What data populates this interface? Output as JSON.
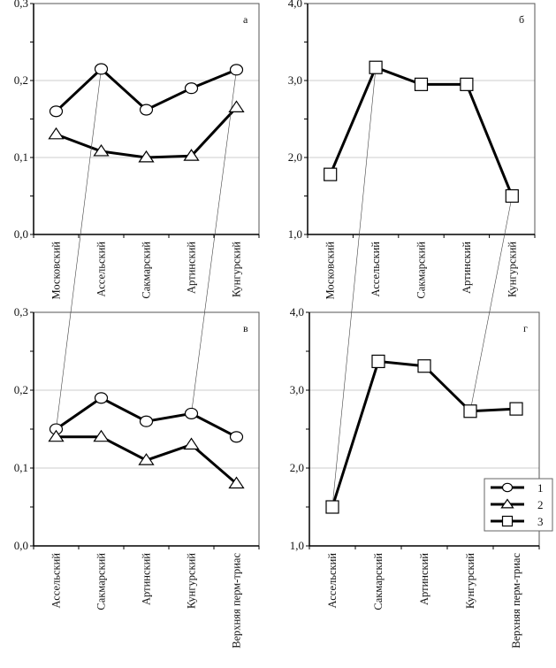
{
  "chart_data": [
    {
      "type": "line",
      "panel_label": "а",
      "categories": [
        "Московский",
        "Ассельский",
        "Сакмарский",
        "Артинский",
        "Кунгурский"
      ],
      "ylim": [
        0.0,
        0.3
      ],
      "yticks": [
        "0,0",
        "0,1",
        "0,2",
        "0,3"
      ],
      "ytick_values": [
        0.0,
        0.1,
        0.2,
        0.3
      ],
      "grid": true,
      "series": [
        {
          "name": "1",
          "marker": "circle",
          "values": [
            0.16,
            0.215,
            0.162,
            0.19,
            0.214
          ]
        },
        {
          "name": "2",
          "marker": "triangle",
          "values": [
            0.13,
            0.108,
            0.1,
            0.102,
            0.165
          ]
        }
      ]
    },
    {
      "type": "line",
      "panel_label": "б",
      "categories": [
        "Московский",
        "Ассельский",
        "Сакмарский",
        "Артинский",
        "Кунгурский"
      ],
      "ylim": [
        1.0,
        4.0
      ],
      "yticks": [
        "1,0",
        "2,0",
        "3,0",
        "4,0"
      ],
      "ytick_values": [
        1.0,
        2.0,
        3.0,
        4.0
      ],
      "grid": true,
      "series": [
        {
          "name": "3",
          "marker": "square",
          "values": [
            1.78,
            3.17,
            2.95,
            2.95,
            1.5
          ]
        }
      ]
    },
    {
      "type": "line",
      "panel_label": "в",
      "categories": [
        "Ассельский",
        "Сакмарский",
        "Артинский",
        "Кунгурский",
        "Верхняя перм-триас"
      ],
      "ylim": [
        0.0,
        0.3
      ],
      "yticks": [
        "0,0",
        "0,1",
        "0,2",
        "0,3"
      ],
      "ytick_values": [
        0.0,
        0.1,
        0.2,
        0.3
      ],
      "grid": true,
      "series": [
        {
          "name": "1",
          "marker": "circle",
          "values": [
            0.15,
            0.19,
            0.16,
            0.17,
            0.14
          ]
        },
        {
          "name": "2",
          "marker": "triangle",
          "values": [
            0.14,
            0.14,
            0.11,
            0.13,
            0.08
          ]
        }
      ]
    },
    {
      "type": "line",
      "panel_label": "г",
      "categories": [
        "Ассельский",
        "Сакмарский",
        "Артинский",
        "Кунгурский",
        "Верхняя перм-триас"
      ],
      "ylim": [
        1.0,
        4.0
      ],
      "yticks": [
        "1,0",
        "2,0",
        "3,0",
        "4,0"
      ],
      "ytick_values": [
        1.0,
        2.0,
        3.0,
        4.0
      ],
      "grid": true,
      "series": [
        {
          "name": "3",
          "marker": "square",
          "values": [
            1.5,
            3.37,
            3.31,
            2.73,
            2.76
          ]
        }
      ]
    }
  ],
  "connectors": [
    {
      "from_panel": 0,
      "from_series": 0,
      "from_index": 1,
      "to_panel": 2,
      "to_series": 0,
      "to_index": 0
    },
    {
      "from_panel": 0,
      "from_series": 0,
      "from_index": 4,
      "to_panel": 2,
      "to_series": 0,
      "to_index": 3
    },
    {
      "from_panel": 1,
      "from_series": 0,
      "from_index": 1,
      "to_panel": 3,
      "to_series": 0,
      "to_index": 0
    },
    {
      "from_panel": 1,
      "from_series": 0,
      "from_index": 4,
      "to_panel": 3,
      "to_series": 0,
      "to_index": 3
    }
  ],
  "legend": {
    "placement": "bottom-right of panel г",
    "entries": [
      {
        "label": "1",
        "marker": "circle"
      },
      {
        "label": "2",
        "marker": "triangle"
      },
      {
        "label": "3",
        "marker": "square"
      }
    ]
  },
  "colors": {
    "line": "#000000",
    "grid": "#bbbbbb",
    "marker_fill": "#ffffff"
  }
}
